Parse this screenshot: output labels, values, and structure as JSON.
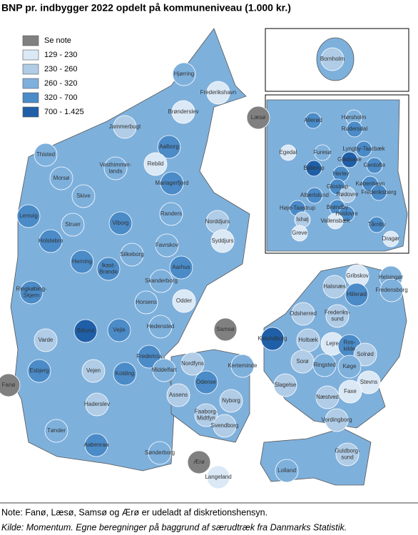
{
  "title": "BNP pr. indbygger 2022 opdelt på kommuneniveau (1.000 kr.)",
  "legend": [
    {
      "label": "Se note",
      "color": "#808080"
    },
    {
      "label": "129 - 230",
      "color": "#dbe8f5"
    },
    {
      "label": "230 - 260",
      "color": "#b0cce6"
    },
    {
      "label": "260 - 320",
      "color": "#7eb0dc"
    },
    {
      "label": "320 - 700",
      "color": "#4a8bc8"
    },
    {
      "label": "700 - 1.425",
      "color": "#1f5fa8"
    }
  ],
  "municipalities": [
    {
      "label": "Hjørring",
      "color": "#7eb0dc"
    },
    {
      "label": "Frederikshavn",
      "color": "#dbe8f5"
    },
    {
      "label": "Læsø",
      "color": "#808080"
    },
    {
      "label": "Brønderslev",
      "color": "#dbe8f5"
    },
    {
      "label": "Jammerbugt",
      "color": "#b0cce6"
    },
    {
      "label": "Thisted",
      "color": "#7eb0dc"
    },
    {
      "label": "Aalborg",
      "color": "#4a8bc8"
    },
    {
      "label": "Morsø",
      "color": "#7eb0dc"
    },
    {
      "label": "Vesthimmer-\nlands",
      "color": "#7eb0dc"
    },
    {
      "label": "Rebild",
      "color": "#dbe8f5"
    },
    {
      "label": "Mariagerfjord",
      "color": "#4a8bc8"
    },
    {
      "label": "Skive",
      "color": "#7eb0dc"
    },
    {
      "label": "Lemvig",
      "color": "#4a8bc8"
    },
    {
      "label": "Struer",
      "color": "#7eb0dc"
    },
    {
      "label": "Holstebro",
      "color": "#4a8bc8"
    },
    {
      "label": "Viborg",
      "color": "#4a8bc8"
    },
    {
      "label": "Randers",
      "color": "#7eb0dc"
    },
    {
      "label": "Norddjurs",
      "color": "#b0cce6"
    },
    {
      "label": "Syddjurs",
      "color": "#dbe8f5"
    },
    {
      "label": "Favrskov",
      "color": "#7eb0dc"
    },
    {
      "label": "Silkeborg",
      "color": "#7eb0dc"
    },
    {
      "label": "Herning",
      "color": "#4a8bc8"
    },
    {
      "label": "Ikast-\nBrande",
      "color": "#4a8bc8"
    },
    {
      "label": "Aarhus",
      "color": "#4a8bc8"
    },
    {
      "label": "Skanderborg",
      "color": "#7eb0dc"
    },
    {
      "label": "Ringkøbing-\nSkjern",
      "color": "#4a8bc8"
    },
    {
      "label": "Odder",
      "color": "#dbe8f5"
    },
    {
      "label": "Horsens",
      "color": "#7eb0dc"
    },
    {
      "label": "Samsø",
      "color": "#808080"
    },
    {
      "label": "Hedensted",
      "color": "#7eb0dc"
    },
    {
      "label": "Vejle",
      "color": "#4a8bc8"
    },
    {
      "label": "Billund",
      "color": "#1f5fa8"
    },
    {
      "label": "Varde",
      "color": "#b0cce6"
    },
    {
      "label": "Fredericia",
      "color": "#4a8bc8"
    },
    {
      "label": "Esbjerg",
      "color": "#4a8bc8"
    },
    {
      "label": "Fanø",
      "color": "#808080"
    },
    {
      "label": "Vejen",
      "color": "#b0cce6"
    },
    {
      "label": "Kolding",
      "color": "#4a8bc8"
    },
    {
      "label": "Middelfart",
      "color": "#7eb0dc"
    },
    {
      "label": "Haderslev",
      "color": "#b0cce6"
    },
    {
      "label": "Tønder",
      "color": "#7eb0dc"
    },
    {
      "label": "Aabenraa",
      "color": "#4a8bc8"
    },
    {
      "label": "Sønderborg",
      "color": "#7eb0dc"
    },
    {
      "label": "Nordfyns",
      "color": "#b0cce6"
    },
    {
      "label": "Kerteminde",
      "color": "#7eb0dc"
    },
    {
      "label": "Odense",
      "color": "#4a8bc8"
    },
    {
      "label": "Assens",
      "color": "#b0cce6"
    },
    {
      "label": "Nyborg",
      "color": "#b0cce6"
    },
    {
      "label": "Faaborg-\nMidtfyn",
      "color": "#b0cce6"
    },
    {
      "label": "Svendborg",
      "color": "#b0cce6"
    },
    {
      "label": "Ærø",
      "color": "#808080"
    },
    {
      "label": "Langeland",
      "color": "#dbe8f5"
    },
    {
      "label": "Gribskov",
      "color": "#dbe8f5"
    },
    {
      "label": "Helsingør",
      "color": "#7eb0dc"
    },
    {
      "label": "Halsnæs",
      "color": "#b0cce6"
    },
    {
      "label": "Hillerød",
      "color": "#4a8bc8"
    },
    {
      "label": "Fredensborg",
      "color": "#7eb0dc"
    },
    {
      "label": "Odsherred",
      "color": "#b0cce6"
    },
    {
      "label": "Frederiks-\nsund",
      "color": "#b0cce6"
    },
    {
      "label": "Kalundborg",
      "color": "#1f5fa8"
    },
    {
      "label": "Holbæk",
      "color": "#b0cce6"
    },
    {
      "label": "Lejre",
      "color": "#dbe8f5"
    },
    {
      "label": "Ros-\nkilde",
      "color": "#4a8bc8"
    },
    {
      "label": "Solrød",
      "color": "#b0cce6"
    },
    {
      "label": "Sorø",
      "color": "#b0cce6"
    },
    {
      "label": "Ringsted",
      "color": "#7eb0dc"
    },
    {
      "label": "Køge",
      "color": "#7eb0dc"
    },
    {
      "label": "Slagelse",
      "color": "#b0cce6"
    },
    {
      "label": "Stevns",
      "color": "#dbe8f5"
    },
    {
      "label": "Næstved",
      "color": "#b0cce6"
    },
    {
      "label": "Faxe",
      "color": "#dbe8f5"
    },
    {
      "label": "Vordingborg",
      "color": "#b0cce6"
    },
    {
      "label": "Guldborg-\nsund",
      "color": "#b0cce6"
    },
    {
      "label": "Lolland",
      "color": "#7eb0dc"
    },
    {
      "label": "Bornholm",
      "color": "#b0cce6"
    }
  ],
  "capital_inset": [
    {
      "label": "Hørsholm",
      "color": "#7eb0dc"
    },
    {
      "label": "Allerød",
      "color": "#4a8bc8"
    },
    {
      "label": "Rudersdal",
      "color": "#4a8bc8"
    },
    {
      "label": "Egedal",
      "color": "#dbe8f5"
    },
    {
      "label": "Furesø",
      "color": "#7eb0dc"
    },
    {
      "label": "Lyngby-Taarbæk",
      "color": "#4a8bc8"
    },
    {
      "label": "Gladsaxe",
      "color": "#1f5fa8"
    },
    {
      "label": "Ballerup",
      "color": "#1f5fa8"
    },
    {
      "label": "Herlev",
      "color": "#4a8bc8"
    },
    {
      "label": "Gentofte",
      "color": "#4a8bc8"
    },
    {
      "label": "København",
      "color": "#4a8bc8"
    },
    {
      "label": "Glostrup",
      "color": "#4a8bc8"
    },
    {
      "label": "Albertslund",
      "color": "#4a8bc8"
    },
    {
      "label": "Rødovre",
      "color": "#b0cce6"
    },
    {
      "label": "Frederiksberg",
      "color": "#4a8bc8"
    },
    {
      "label": "Høje-Taastrup",
      "color": "#4a8bc8"
    },
    {
      "label": "Brøndby",
      "color": "#4a8bc8"
    },
    {
      "label": "Hvidovre",
      "color": "#4a8bc8"
    },
    {
      "label": "Ishøj",
      "color": "#b0cce6"
    },
    {
      "label": "Vallensbæk",
      "color": "#dbe8f5"
    },
    {
      "label": "Tårnby",
      "color": "#4a8bc8"
    },
    {
      "label": "Greve",
      "color": "#dbe8f5"
    },
    {
      "label": "Dragør",
      "color": "#dbe8f5"
    }
  ],
  "note": "Note: Fanø, Læsø, Samsø og Ærø er udeladt af diskretionshensyn.",
  "source": "Kilde: Momentum. Egne beregninger på baggrund af særudtræk fra Danmarks Statistik."
}
